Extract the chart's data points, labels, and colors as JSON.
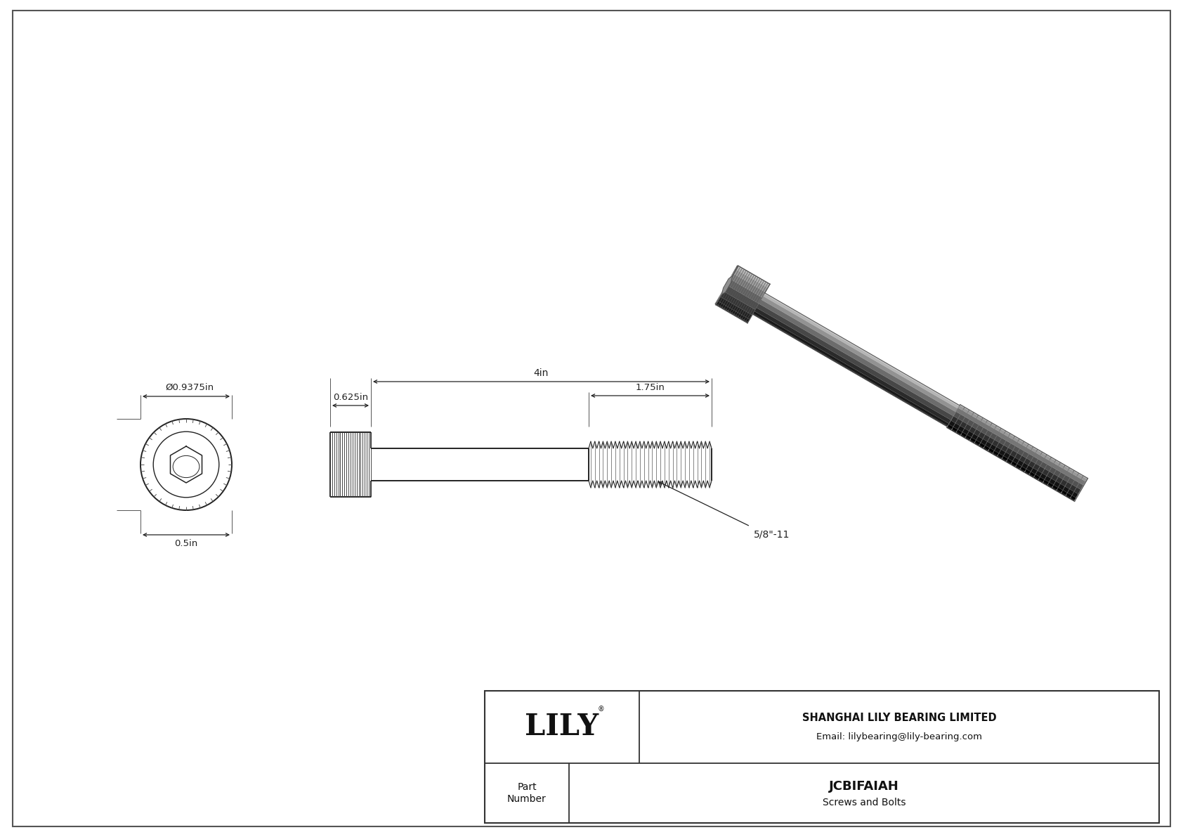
{
  "bg_color": "#ffffff",
  "line_color": "#222222",
  "title": "JCBIFAIAH",
  "subtitle": "Screws and Bolts",
  "company": "SHANGHAI LILY BEARING LIMITED",
  "email": "Email: lilybearing@lily-bearing.com",
  "part_label": "Part\nNumber",
  "logo_text": "LILY",
  "logo_reg": "®",
  "dim_diameter": "Ø0.9375in",
  "dim_height": "0.5in",
  "dim_head_length": "0.625in",
  "dim_total_length": "4in",
  "dim_thread_length": "1.75in",
  "dim_thread_label": "5/8\"-11",
  "drawing_color": "#222222",
  "draw_lw": 1.4,
  "knurl_lw": 0.7,
  "thread_lw": 0.8
}
